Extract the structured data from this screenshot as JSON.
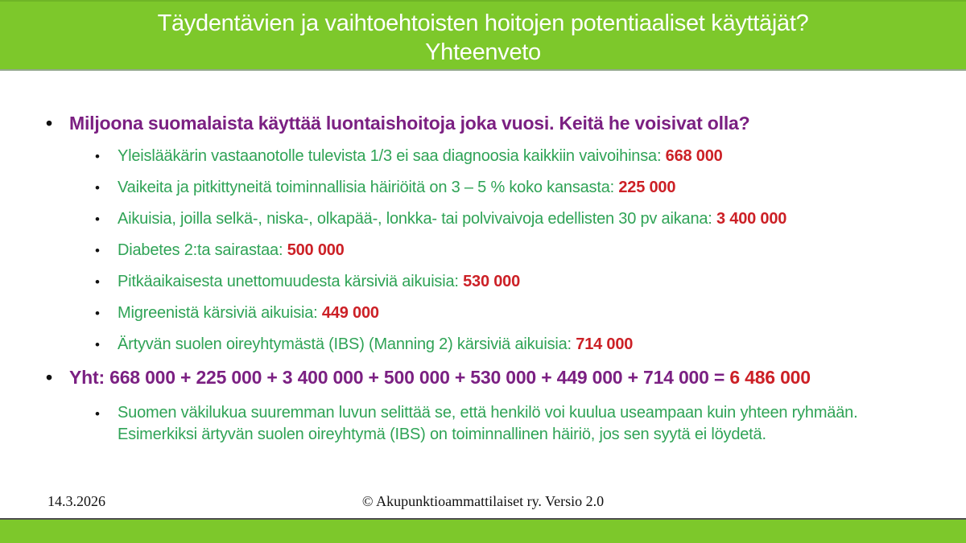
{
  "slide": {
    "title_line1": "Täydentävien ja vaihtoehtoisten hoitojen potentiaaliset käyttäjät?",
    "title_line2": "Yhteenveto",
    "main_bullet": "Miljoona suomalaista käyttää luontaishoitoja joka vuosi. Keitä he voisivat olla?",
    "sub_bullets": [
      {
        "text": "Yleislääkärin vastaanotolle tulevista 1/3 ei saa diagnoosia kaikkiin vaivoihinsa: ",
        "value": "668 000"
      },
      {
        "text": "Vaikeita ja pitkittyneitä toiminnallisia häiriöitä on 3 – 5 % koko kansasta: ",
        "value": "225 000"
      },
      {
        "text": "Aikuisia, joilla selkä-, niska-, olkapää-, lonkka- tai polvivaivoja edellisten 30 pv aikana: ",
        "value": "3 400 000"
      },
      {
        "text": "Diabetes 2:ta sairastaa: ",
        "value": "500 000"
      },
      {
        "text": "Pitkäaikaisesta unettomuudesta kärsiviä aikuisia: ",
        "value": "530 000"
      },
      {
        "text": "Migreenistä kärsiviä aikuisia: ",
        "value": "449 000"
      },
      {
        "text": "Ärtyvän suolen oireyhtymästä (IBS) (Manning 2) kärsiviä aikuisia: ",
        "value": "714 000"
      }
    ],
    "total_bullet": {
      "text": "Yht: 668 000 + 225 000 + 3 400 000 + 500 000 + 530 000 + 449 000 + 714 000 = ",
      "total": "6 486 000"
    },
    "note": "Suomen väkilukua suuremman luvun selittää se, että henkilö voi kuulua useampaan kuin yhteen ryhmään. Esimerkiksi ärtyvän suolen oireyhtymä (IBS) on toiminnallinen häiriö, jos sen syytä ei löydetä.",
    "footer": {
      "date": "14.3.2026",
      "copyright": "© Akupunktioammattilaiset ry. Versio 2.0"
    },
    "colors": {
      "banner_green": "#7dc82b",
      "text_green": "#2fa356",
      "text_purple": "#7b2082",
      "text_red": "#cc2026"
    }
  }
}
